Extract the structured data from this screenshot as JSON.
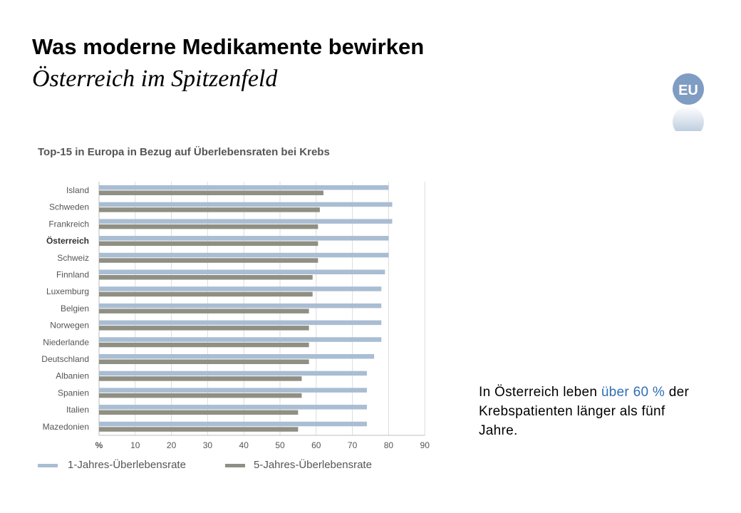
{
  "slide": {
    "title": "Was moderne Medikamente bewirken",
    "subtitle": "Österreich im Spitzenfeld",
    "logo_text": "EU"
  },
  "callout": {
    "part1": "In Österreich leben ",
    "highlight": "über 60 %",
    "part2": " der Krebspatienten länger als fünf Jahre.",
    "highlight_color": "#2f6fb4"
  },
  "chart_data": {
    "type": "bar",
    "orientation": "horizontal",
    "title": "Top-15 in Europa in Bezug auf Überlebensraten bei Krebs",
    "categories": [
      "Island",
      "Schweden",
      "Frankreich",
      "Österreich",
      "Schweiz",
      "Finnland",
      "Luxemburg",
      "Belgien",
      "Norwegen",
      "Niederlande",
      "Deutschland",
      "Albanien",
      "Spanien",
      "Italien",
      "Mazedonien"
    ],
    "highlighted_category": "Österreich",
    "series": [
      {
        "name": "1-Jahres-Überlebensrate",
        "color": "#a9bdd3",
        "values": [
          80,
          81,
          81,
          80,
          80,
          79,
          78,
          78,
          78,
          78,
          76,
          74,
          74,
          74,
          74
        ]
      },
      {
        "name": "5-Jahres-Überlebensrate",
        "color": "#8f8f83",
        "values": [
          62,
          61,
          60.5,
          60.5,
          60.5,
          59,
          59,
          58,
          58,
          58,
          58,
          56,
          56,
          55,
          55
        ]
      }
    ],
    "xlabel": "%",
    "xticks": [
      10,
      20,
      30,
      40,
      50,
      60,
      70,
      80,
      90
    ],
    "xlim": [
      0,
      90
    ],
    "grid": true,
    "legend_position": "bottom"
  }
}
